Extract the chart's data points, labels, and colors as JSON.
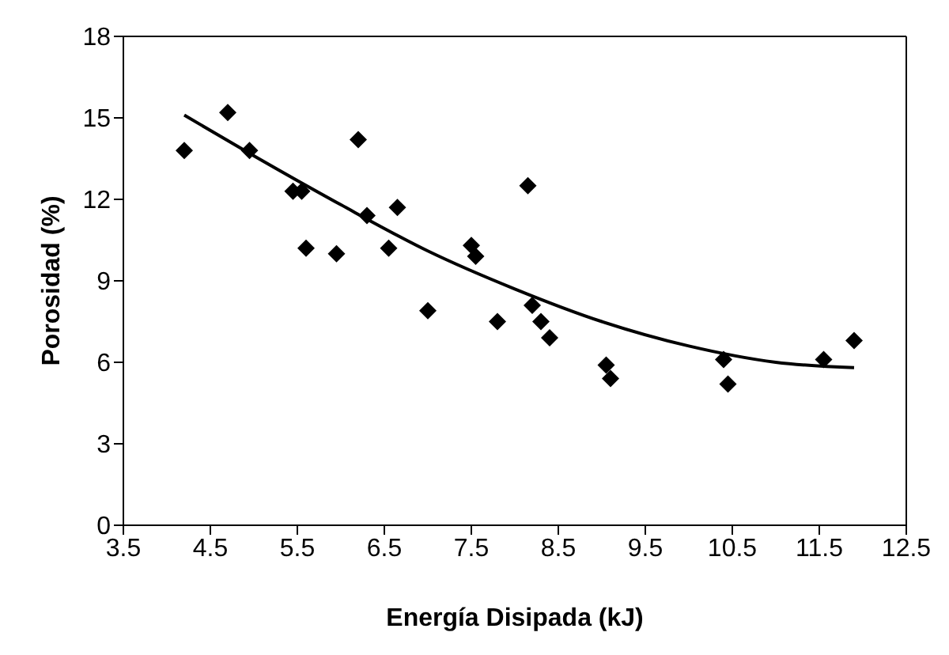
{
  "chart_data": {
    "type": "scatter",
    "xlabel": "Energía Disipada (kJ)",
    "ylabel": "Porosidad (%)",
    "xlim": [
      3.5,
      12.5
    ],
    "xticks": [
      3.5,
      4.5,
      5.5,
      6.5,
      7.5,
      8.5,
      9.5,
      10.5,
      11.5,
      12.5
    ],
    "ylim": [
      0,
      18
    ],
    "yticks": [
      0,
      3,
      6,
      9,
      12,
      15,
      18
    ],
    "marker": "diamond",
    "series": [
      {
        "color": "#000000",
        "x": [
          4.2,
          4.7,
          4.95,
          5.45,
          5.55,
          5.6,
          5.95,
          6.2,
          6.3,
          6.55,
          6.65,
          7.0,
          7.5,
          7.55,
          7.8,
          8.15,
          8.2,
          8.3,
          8.4,
          9.05,
          9.1,
          10.4,
          10.45,
          11.55,
          11.9
        ],
        "values": [
          13.8,
          15.2,
          13.8,
          12.3,
          12.3,
          10.2,
          10.0,
          14.2,
          11.4,
          10.2,
          11.7,
          7.9,
          10.3,
          9.9,
          7.5,
          12.5,
          8.1,
          7.5,
          6.9,
          5.9,
          5.4,
          6.1,
          5.2,
          6.1,
          6.8
        ]
      },
      {
        "type": "line",
        "color": "#000000",
        "marker": "none",
        "line_style": "solid",
        "x": [
          4.2,
          5,
          6,
          7,
          8,
          9,
          10,
          11,
          11.9
        ],
        "values": [
          15.1,
          13.6,
          11.8,
          10.1,
          8.7,
          7.5,
          6.6,
          6.0,
          5.8
        ]
      }
    ]
  }
}
